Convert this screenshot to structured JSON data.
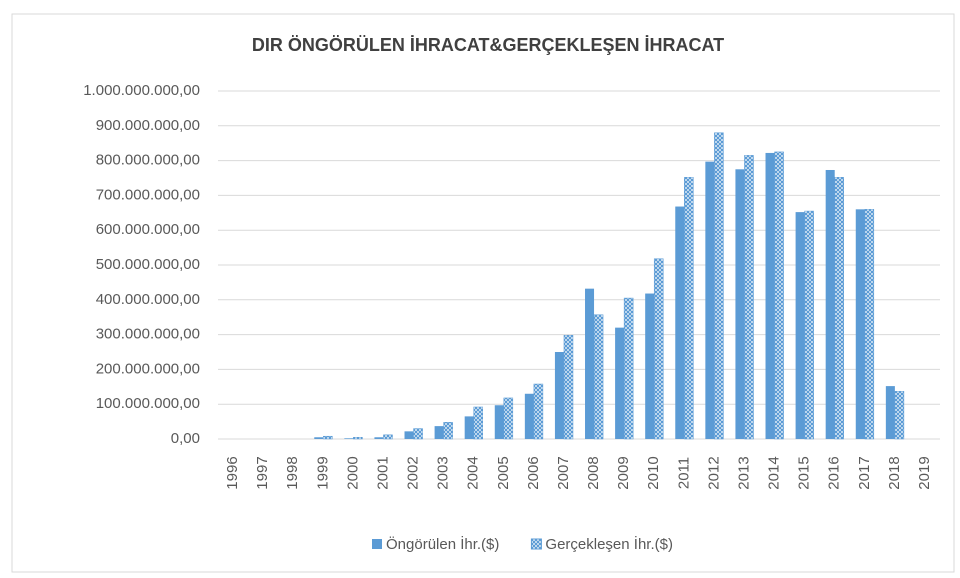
{
  "chart_data": {
    "type": "bar",
    "title": "DIR ÖNGÖRÜLEN İHRACAT&GERÇEKLEŞEN İHRACAT",
    "categories": [
      "1996",
      "1997",
      "1998",
      "1999",
      "2000",
      "2001",
      "2002",
      "2003",
      "2004",
      "2005",
      "2006",
      "2007",
      "2008",
      "2009",
      "2010",
      "2011",
      "2012",
      "2013",
      "2014",
      "2015",
      "2016",
      "2017",
      "2018",
      "2019"
    ],
    "series": [
      {
        "name": "Öngörülen İhr.($)",
        "color": "#5b9bd5",
        "pattern": "solid",
        "values": [
          0,
          0,
          0,
          5000000,
          2000000,
          5000000,
          22000000,
          37000000,
          65000000,
          97000000,
          130000000,
          250000000,
          432000000,
          320000000,
          418000000,
          668000000,
          797000000,
          775000000,
          822000000,
          652000000,
          773000000,
          660000000,
          152000000,
          null
        ]
      },
      {
        "name": "Gerçekleşen İhr.($)",
        "color": "#5b9bd5",
        "pattern": "crosshatch",
        "values": [
          0,
          0,
          0,
          8000000,
          5000000,
          12000000,
          30000000,
          48000000,
          92000000,
          118000000,
          158000000,
          298000000,
          357000000,
          405000000,
          518000000,
          752000000,
          880000000,
          815000000,
          825000000,
          655000000,
          752000000,
          660000000,
          137000000,
          null
        ]
      }
    ],
    "ylim": [
      0,
      1000000000
    ],
    "yticks": [
      {
        "value": 0,
        "label": "0,00"
      },
      {
        "value": 100000000,
        "label": "100.000.000,00"
      },
      {
        "value": 200000000,
        "label": "200.000.000,00"
      },
      {
        "value": 300000000,
        "label": "300.000.000,00"
      },
      {
        "value": 400000000,
        "label": "400.000.000,00"
      },
      {
        "value": 500000000,
        "label": "500.000.000,00"
      },
      {
        "value": 600000000,
        "label": "600.000.000,00"
      },
      {
        "value": 700000000,
        "label": "700.000.000,00"
      },
      {
        "value": 800000000,
        "label": "800.000.000,00"
      },
      {
        "value": 900000000,
        "label": "900.000.000,00"
      },
      {
        "value": 1000000000,
        "label": "1.000.000.000,00"
      }
    ],
    "grid": true,
    "legend": "bottom"
  }
}
